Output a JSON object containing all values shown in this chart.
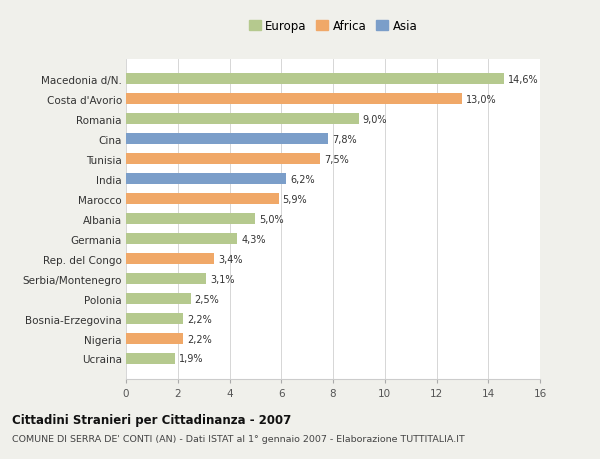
{
  "categories": [
    "Macedonia d/N.",
    "Costa d'Avorio",
    "Romania",
    "Cina",
    "Tunisia",
    "India",
    "Marocco",
    "Albania",
    "Germania",
    "Rep. del Congo",
    "Serbia/Montenegro",
    "Polonia",
    "Bosnia-Erzegovina",
    "Nigeria",
    "Ucraina"
  ],
  "values": [
    14.6,
    13.0,
    9.0,
    7.8,
    7.5,
    6.2,
    5.9,
    5.0,
    4.3,
    3.4,
    3.1,
    2.5,
    2.2,
    2.2,
    1.9
  ],
  "labels": [
    "14,6%",
    "13,0%",
    "9,0%",
    "7,8%",
    "7,5%",
    "6,2%",
    "5,9%",
    "5,0%",
    "4,3%",
    "3,4%",
    "3,1%",
    "2,5%",
    "2,2%",
    "2,2%",
    "1,9%"
  ],
  "continent": [
    "Europa",
    "Africa",
    "Europa",
    "Asia",
    "Africa",
    "Asia",
    "Africa",
    "Europa",
    "Europa",
    "Africa",
    "Europa",
    "Europa",
    "Europa",
    "Africa",
    "Europa"
  ],
  "colors": {
    "Europa": "#b5c98e",
    "Africa": "#f0a868",
    "Asia": "#7b9ec9"
  },
  "xlim": [
    0,
    16
  ],
  "xticks": [
    0,
    2,
    4,
    6,
    8,
    10,
    12,
    14,
    16
  ],
  "title": "Cittadini Stranieri per Cittadinanza - 2007",
  "subtitle": "COMUNE DI SERRA DE' CONTI (AN) - Dati ISTAT al 1° gennaio 2007 - Elaborazione TUTTITALIA.IT",
  "background_color": "#f0f0eb",
  "plot_background": "#ffffff",
  "bar_height": 0.55,
  "label_fontsize": 7.0,
  "ytick_fontsize": 7.5,
  "xtick_fontsize": 7.5,
  "legend_fontsize": 8.5,
  "title_fontsize": 8.5,
  "subtitle_fontsize": 6.8
}
